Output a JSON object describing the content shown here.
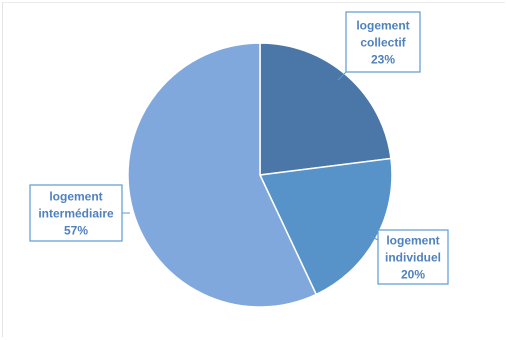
{
  "chart_data": {
    "type": "pie",
    "title": "",
    "slices": [
      {
        "label": [
          "logement",
          "collectif"
        ],
        "value": 23,
        "value_label": "23%",
        "color": "#4a76a8"
      },
      {
        "label": [
          "logement",
          "individuel"
        ],
        "value": 20,
        "value_label": "20%",
        "color": "#5793c9"
      },
      {
        "label": [
          "logement",
          "intermédiaire"
        ],
        "value": 57,
        "value_label": "57%",
        "color": "#80a8dc"
      }
    ],
    "label_color": "#4f81bd",
    "callout_border_color": "#5b9bd5",
    "legend": "none",
    "start": "top, clockwise"
  }
}
